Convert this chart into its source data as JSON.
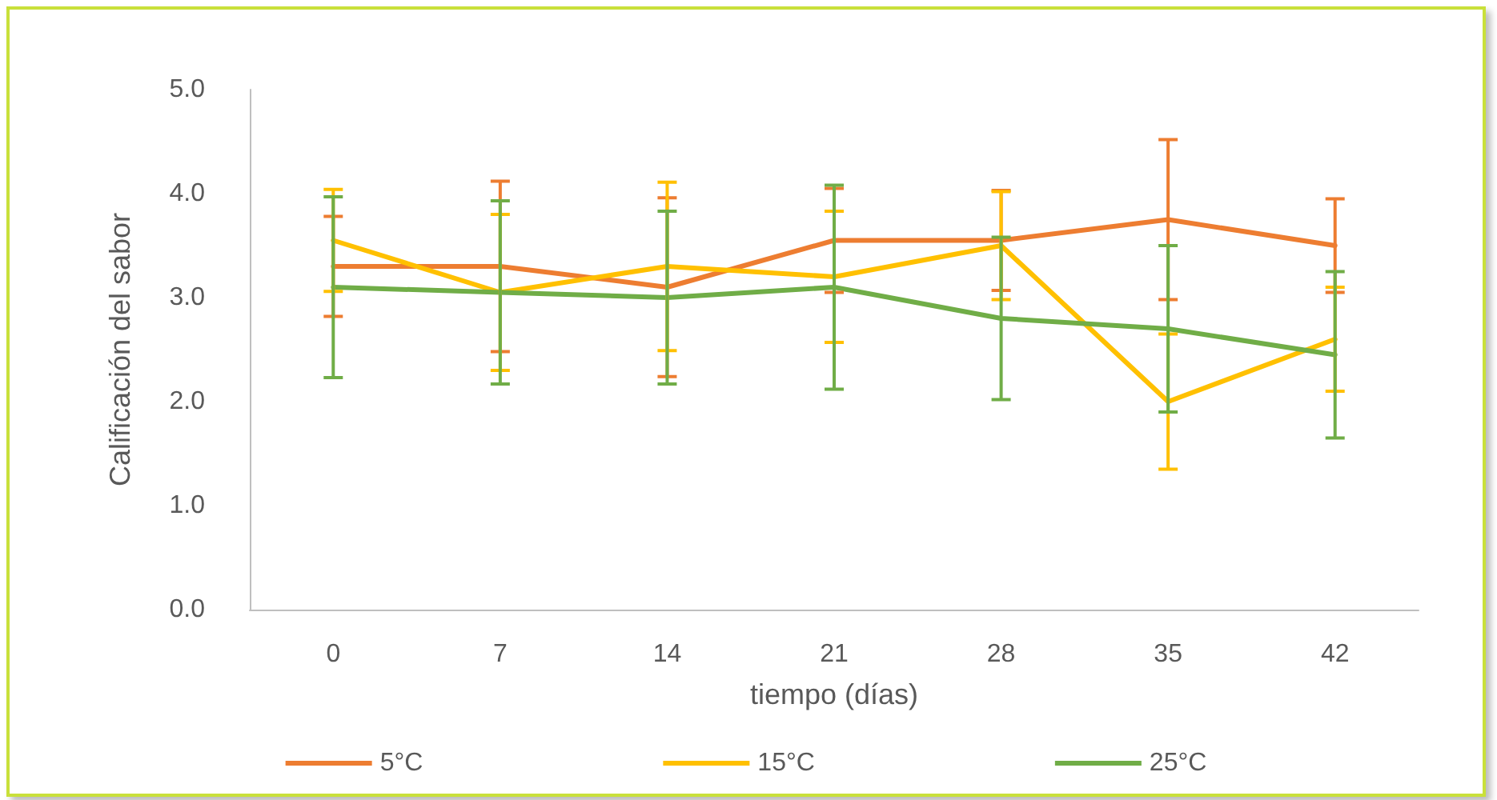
{
  "chart_data": {
    "type": "line",
    "xlabel": "tiempo (días)",
    "ylabel": "Calificación del sabor",
    "categories": [
      "0",
      "7",
      "14",
      "21",
      "28",
      "35",
      "42"
    ],
    "ylim": [
      0,
      5
    ],
    "yticks": [
      {
        "value": 0,
        "label": "0.0"
      },
      {
        "value": 1,
        "label": "1.0"
      },
      {
        "value": 2,
        "label": "2.0"
      },
      {
        "value": 3,
        "label": "3.0"
      },
      {
        "value": 4,
        "label": "4.0"
      },
      {
        "value": 5,
        "label": "5.0"
      }
    ],
    "grid": false,
    "legend": "bottom",
    "marker": "none",
    "line_style": "solid",
    "series": [
      {
        "name": "5°C",
        "color": "#ed7d31",
        "values": [
          3.3,
          3.3,
          3.1,
          3.55,
          3.55,
          3.75,
          3.5
        ],
        "errors": [
          0.48,
          0.82,
          0.86,
          0.5,
          0.48,
          0.77,
          0.45
        ]
      },
      {
        "name": "15°C",
        "color": "#ffc000",
        "values": [
          3.55,
          3.05,
          3.3,
          3.2,
          3.5,
          2.0,
          2.6
        ],
        "errors": [
          0.49,
          0.75,
          0.81,
          0.63,
          0.52,
          0.65,
          0.5
        ]
      },
      {
        "name": "25°C",
        "color": "#70ad47",
        "values": [
          3.1,
          3.05,
          3.0,
          3.1,
          2.8,
          2.7,
          2.45
        ],
        "errors": [
          0.87,
          0.88,
          0.83,
          0.98,
          0.78,
          0.8,
          0.8
        ]
      }
    ]
  }
}
